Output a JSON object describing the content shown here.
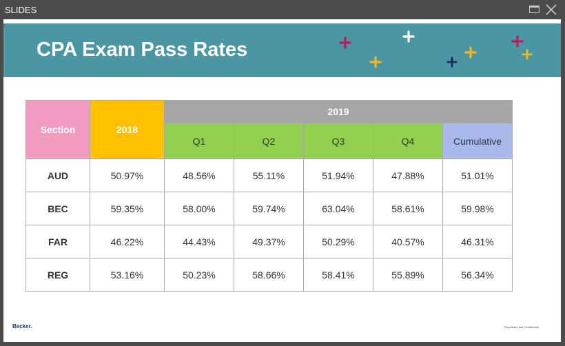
{
  "window": {
    "title": "SLIDES"
  },
  "slide": {
    "title": "CPA Exam Pass Rates",
    "footer_left": "Becker.",
    "footer_right": "Proprietary and Confidential"
  },
  "table": {
    "section_header": "Section",
    "year_2018": "2018",
    "year_2019": "2019",
    "quarters": [
      "Q1",
      "Q2",
      "Q3",
      "Q4",
      "Cumulative"
    ],
    "rows": [
      {
        "section": "AUD",
        "y2018": "50.97%",
        "q1": "48.56%",
        "q2": "55.11%",
        "q3": "51.94%",
        "q4": "47.88%",
        "cumulative": "51.01%"
      },
      {
        "section": "BEC",
        "y2018": "59.35%",
        "q1": "58.00%",
        "q2": "59.74%",
        "q3": "63.04%",
        "q4": "58.61%",
        "cumulative": "59.98%"
      },
      {
        "section": "FAR",
        "y2018": "46.22%",
        "q1": "44.43%",
        "q2": "49.37%",
        "q3": "50.29%",
        "q4": "40.57%",
        "cumulative": "46.31%"
      },
      {
        "section": "REG",
        "y2018": "53.16%",
        "q1": "50.23%",
        "q2": "58.66%",
        "q3": "58.41%",
        "q4": "55.89%",
        "cumulative": "56.34%"
      }
    ]
  },
  "colors": {
    "banner": "#4a96a2",
    "section_header": "#f29bc0",
    "year_2018": "#ffc000",
    "year_2019": "#a6a6a6",
    "quarter": "#92d050",
    "cumulative": "#aab9ec"
  }
}
